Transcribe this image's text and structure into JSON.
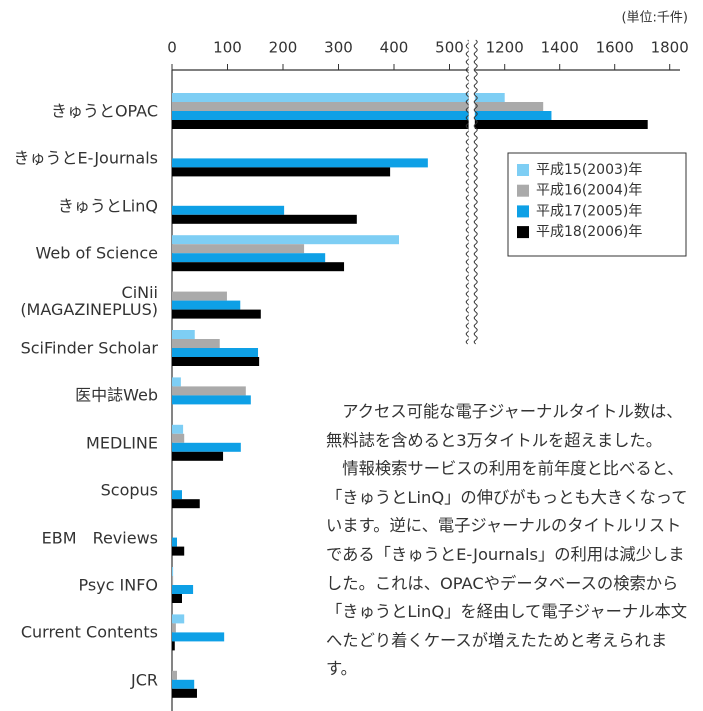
{
  "chart_data": {
    "type": "bar",
    "orientation": "horizontal",
    "unit_label": "(単位:千件)",
    "categories": [
      "きゅうとOPAC",
      "きゅうとE-Journals",
      "きゅうとLinQ",
      "Web of Science",
      "CiNii\n(MAGAZINEPLUS)",
      "SciFinder Scholar",
      "医中誌Web",
      "MEDLINE",
      "Scopus",
      "EBM　Reviews",
      "Psyc INFO",
      "Current Contents",
      "JCR"
    ],
    "series": [
      {
        "name": "平成15(2003)年",
        "color": "#7ecef4",
        "values": [
          1200,
          null,
          null,
          409,
          null,
          41,
          16,
          20,
          null,
          null,
          2,
          22,
          null
        ]
      },
      {
        "name": "平成16(2004)年",
        "color": "#aaaaaa",
        "values": [
          1340,
          null,
          null,
          238,
          99,
          86,
          133,
          22,
          null,
          null,
          2,
          7,
          9
        ]
      },
      {
        "name": "平成17(2005)年",
        "color": "#0ea0e6",
        "values": [
          1370,
          461,
          202,
          276,
          123,
          155,
          142,
          124,
          18,
          9,
          38,
          94,
          40
        ]
      },
      {
        "name": "平成18(2006)年",
        "color": "#000000",
        "values": [
          1720,
          393,
          333,
          310,
          160,
          157,
          null,
          92,
          50,
          22,
          18,
          5,
          45
        ]
      }
    ],
    "xlim": [
      0,
      1800
    ],
    "x_break": [
      540,
      1080
    ],
    "xticks": [
      0,
      100,
      200,
      300,
      400,
      500,
      1200,
      1400,
      1600,
      1800
    ],
    "legend": "upper right"
  },
  "body_text": [
    "アクセス可能な電子ジャーナルタイトル数は、無料誌を含めると3万タイトルを超えました。",
    "情報検索サービスの利用を前年度と比べると、「きゅうとLinQ」の伸びがもっとも大きくなっています。逆に、電子ジャーナルのタイトルリストである「きゅうとE-Journals」の利用は減少しました。これは、OPACやデータベースの検索から「きゅうとLinQ」を経由して電子ジャーナル本文へたどり着くケースが増えたためと考えられます。"
  ]
}
